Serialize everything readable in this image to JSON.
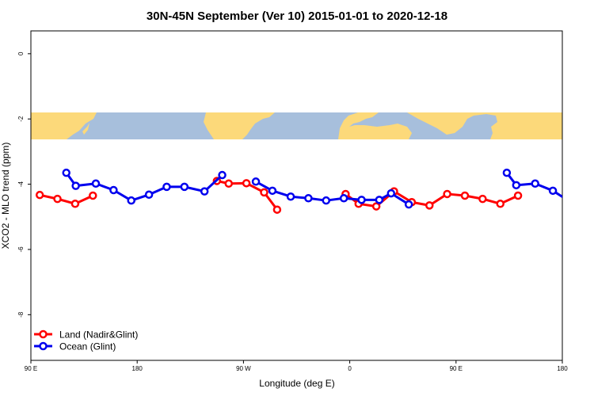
{
  "chart_data": {
    "type": "line",
    "title": "30N-45N September (Ver 10)   2015-01-01 to 2020-12-18",
    "xlabel": "Longitude (deg E)",
    "ylabel": "XCO2 - MLO trend (ppm)",
    "xlim": [
      90,
      540
    ],
    "ylim": [
      -9.4,
      0.7
    ],
    "x_ticks": [
      {
        "value": 90,
        "label": "90 E"
      },
      {
        "value": 180,
        "label": "180"
      },
      {
        "value": 270,
        "label": "90 W"
      },
      {
        "value": 360,
        "label": "0"
      },
      {
        "value": 450,
        "label": "90 E"
      },
      {
        "value": 540,
        "label": "180"
      }
    ],
    "y_ticks": [
      {
        "value": 0,
        "label": "0"
      },
      {
        "value": -2,
        "label": "-2"
      },
      {
        "value": -4,
        "label": "-4"
      },
      {
        "value": -6,
        "label": "-6"
      },
      {
        "value": -8,
        "label": "-8"
      }
    ],
    "grid": false,
    "legend_position": "bottom-left",
    "map_strip": {
      "y_top": -1.8,
      "y_bottom": -2.65,
      "ocean_color": "#a7bfdc",
      "land_color": "#fcd97a"
    },
    "series": [
      {
        "name": "Land (Nadir&Glint)",
        "color": "#ff0000",
        "segments": [
          [
            [
              97.5,
              -4.33
            ],
            [
              112.5,
              -4.45
            ],
            [
              127.5,
              -4.6
            ],
            [
              142.5,
              -4.35
            ]
          ],
          [
            [
              247.5,
              -3.9
            ],
            [
              257.5,
              -3.98
            ],
            [
              272.5,
              -3.97
            ],
            [
              287.5,
              -4.25
            ],
            [
              298.5,
              -4.78
            ]
          ],
          [
            [
              356.5,
              -4.3
            ],
            [
              367.5,
              -4.6
            ],
            [
              382.5,
              -4.68
            ],
            [
              397.5,
              -4.22
            ],
            [
              412.5,
              -4.55
            ],
            [
              427.5,
              -4.65
            ],
            [
              442.5,
              -4.3
            ],
            [
              457.5,
              -4.35
            ],
            [
              472.5,
              -4.45
            ],
            [
              487.5,
              -4.6
            ],
            [
              502.5,
              -4.35
            ]
          ]
        ]
      },
      {
        "name": "Ocean (Glint)",
        "color": "#0000ee",
        "segments": [
          [
            [
              120,
              -3.65
            ],
            [
              128,
              -4.05
            ],
            [
              145,
              -3.98
            ],
            [
              160,
              -4.18
            ],
            [
              175,
              -4.5
            ],
            [
              190,
              -4.32
            ],
            [
              205,
              -4.08
            ],
            [
              220,
              -4.08
            ],
            [
              237,
              -4.22
            ],
            [
              252,
              -3.72
            ]
          ],
          [
            [
              280.5,
              -3.92
            ],
            [
              294.5,
              -4.2
            ],
            [
              310,
              -4.38
            ],
            [
              325,
              -4.43
            ],
            [
              340,
              -4.5
            ],
            [
              355,
              -4.43
            ],
            [
              370,
              -4.48
            ],
            [
              385,
              -4.48
            ],
            [
              395,
              -4.28
            ],
            [
              410,
              -4.62
            ]
          ],
          [
            [
              493,
              -3.65
            ],
            [
              501,
              -4.03
            ],
            [
              517,
              -3.98
            ],
            [
              532,
              -4.2
            ],
            [
              545,
              -4.5
            ]
          ]
        ]
      }
    ]
  }
}
